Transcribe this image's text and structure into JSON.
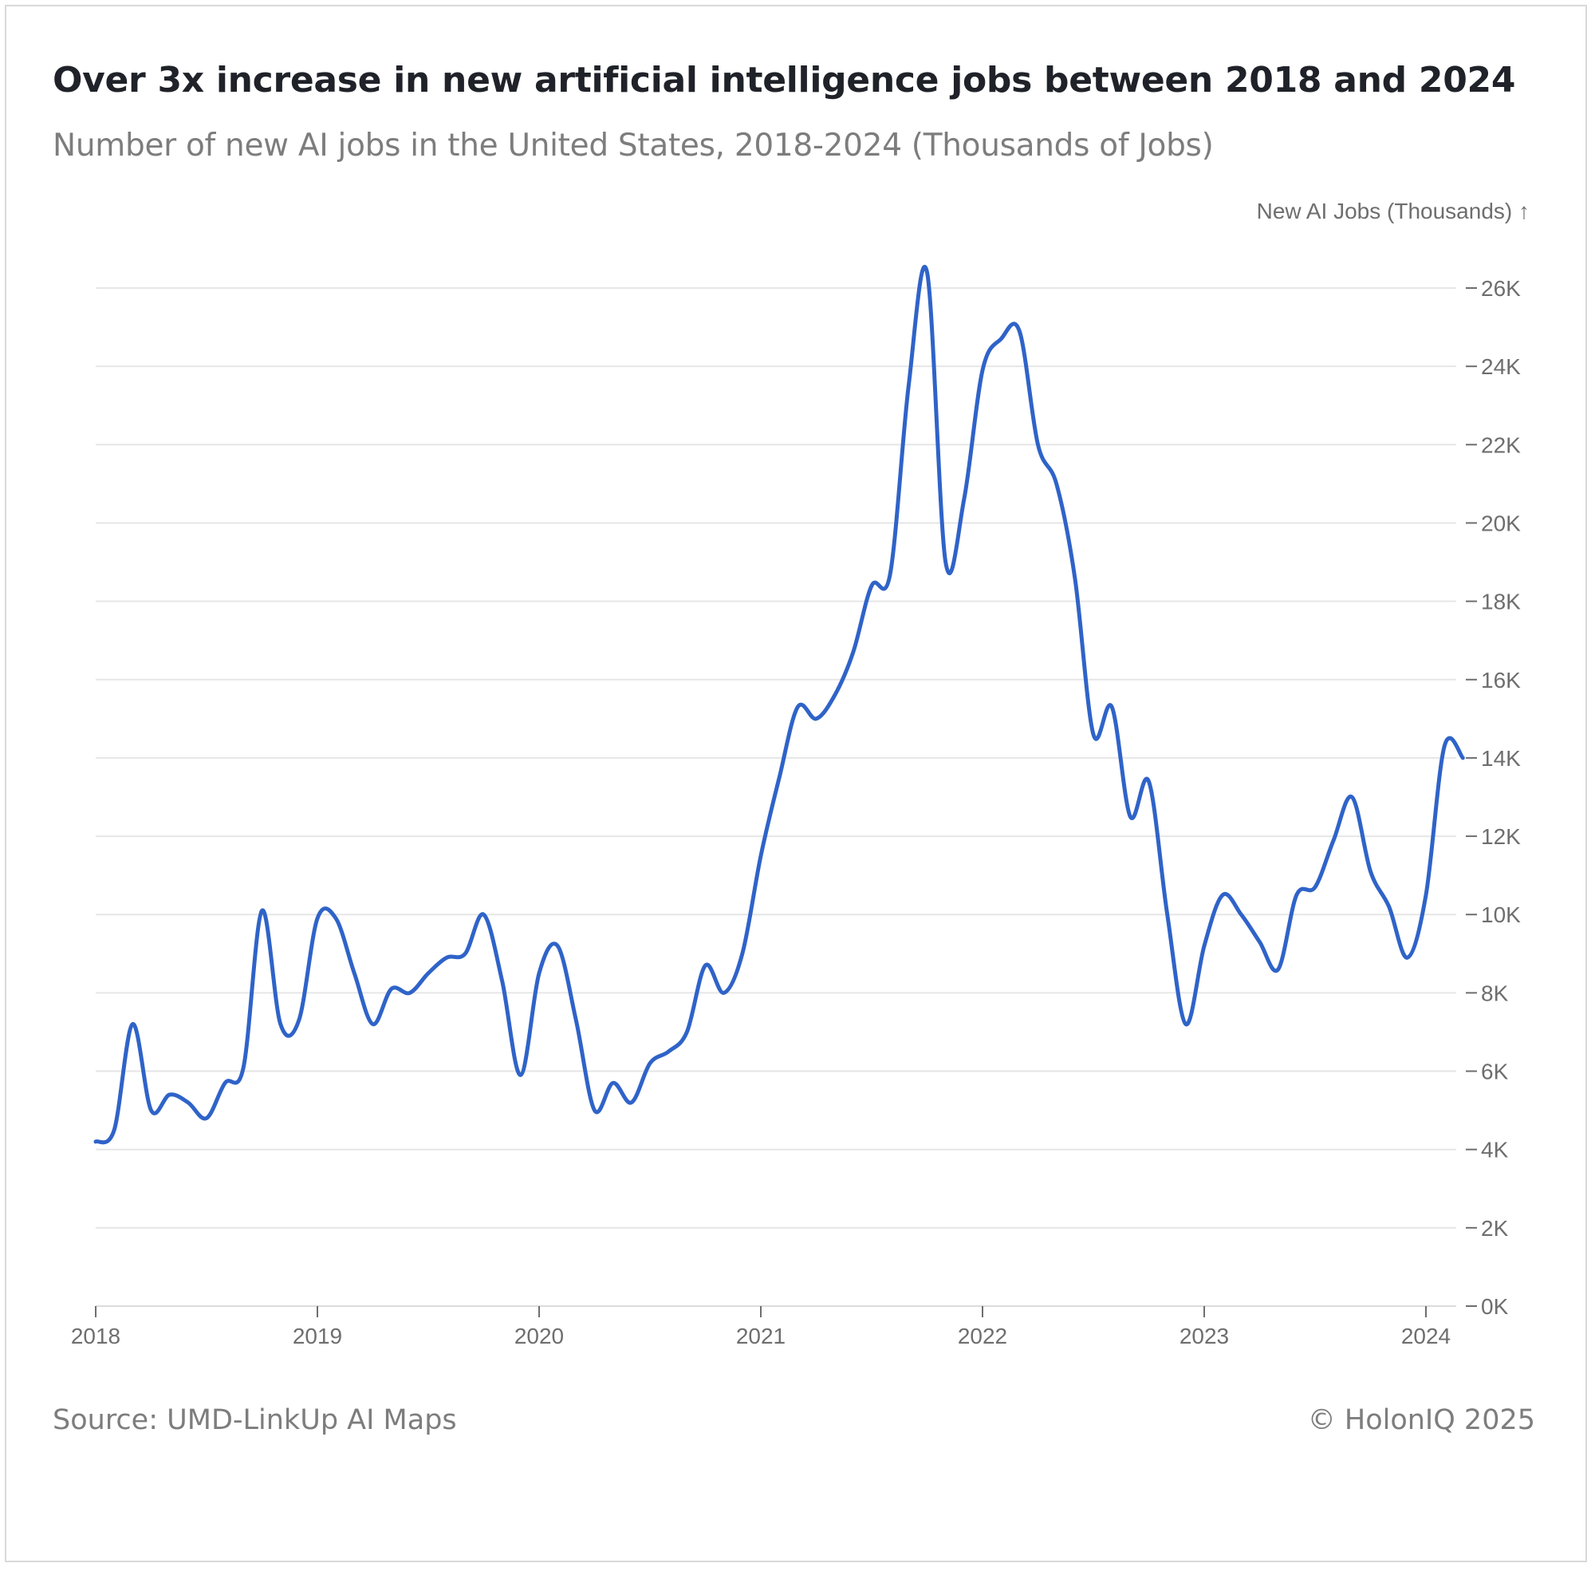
{
  "header": {
    "title": "Over 3x increase in new artificial intelligence jobs between 2018 and 2024",
    "subtitle": "Number of new AI jobs in the United States, 2018-2024 (Thousands of Jobs)"
  },
  "footer": {
    "source": "Source: UMD-LinkUp AI Maps",
    "copyright": "© HolonIQ 2025"
  },
  "colors": {
    "line": "#2f63c8",
    "grid": "#e6e6e6",
    "axis_text": "#6e6e6e",
    "title": "#1f2228"
  },
  "chart_data": {
    "type": "line",
    "ylabel": "New AI Jobs (Thousands) ↑",
    "ylim": [
      0,
      26000
    ],
    "y_ticks": [
      {
        "value": 0,
        "label": "0K"
      },
      {
        "value": 2000,
        "label": "2K"
      },
      {
        "value": 4000,
        "label": "4K"
      },
      {
        "value": 6000,
        "label": "6K"
      },
      {
        "value": 8000,
        "label": "8K"
      },
      {
        "value": 10000,
        "label": "10K"
      },
      {
        "value": 12000,
        "label": "12K"
      },
      {
        "value": 14000,
        "label": "14K"
      },
      {
        "value": 16000,
        "label": "16K"
      },
      {
        "value": 18000,
        "label": "18K"
      },
      {
        "value": 20000,
        "label": "20K"
      },
      {
        "value": 22000,
        "label": "22K"
      },
      {
        "value": 24000,
        "label": "24K"
      },
      {
        "value": 26000,
        "label": "26K"
      }
    ],
    "xlim": [
      "2018-01",
      "2024-03"
    ],
    "x_ticks": [
      "2018",
      "2019",
      "2020",
      "2021",
      "2022",
      "2023",
      "2024"
    ],
    "grid": true,
    "y_axis_position": "right",
    "series": [
      {
        "x": [
          "2018-01",
          "2018-02",
          "2018-03",
          "2018-04",
          "2018-05",
          "2018-06",
          "2018-07",
          "2018-08",
          "2018-09",
          "2018-10",
          "2018-11",
          "2018-12",
          "2019-01",
          "2019-02",
          "2019-03",
          "2019-04",
          "2019-05",
          "2019-06",
          "2019-07",
          "2019-08",
          "2019-09",
          "2019-10",
          "2019-11",
          "2019-12",
          "2020-01",
          "2020-02",
          "2020-03",
          "2020-04",
          "2020-05",
          "2020-06",
          "2020-07",
          "2020-08",
          "2020-09",
          "2020-10",
          "2020-11",
          "2020-12",
          "2021-01",
          "2021-02",
          "2021-03",
          "2021-04",
          "2021-05",
          "2021-06",
          "2021-07",
          "2021-08",
          "2021-09",
          "2021-10",
          "2021-11",
          "2021-12",
          "2022-01",
          "2022-02",
          "2022-03",
          "2022-04",
          "2022-05",
          "2022-06",
          "2022-07",
          "2022-08",
          "2022-09",
          "2022-10",
          "2022-11",
          "2022-12",
          "2023-01",
          "2023-02",
          "2023-03",
          "2023-04",
          "2023-05",
          "2023-06",
          "2023-07",
          "2023-08",
          "2023-09",
          "2023-10",
          "2023-11",
          "2023-12",
          "2024-01",
          "2024-02",
          "2024-03"
        ],
        "values": [
          4200,
          4500,
          7200,
          5000,
          5400,
          5200,
          4800,
          5700,
          6100,
          10100,
          7200,
          7300,
          9900,
          9900,
          8500,
          7200,
          8100,
          8000,
          8500,
          8900,
          9000,
          10000,
          8300,
          5900,
          8500,
          9200,
          7300,
          5000,
          5700,
          5200,
          6200,
          6500,
          7000,
          8700,
          8000,
          9000,
          11500,
          13500,
          15300,
          15000,
          15600,
          16700,
          18400,
          18700,
          23500,
          26400,
          19000,
          20600,
          23900,
          24700,
          24900,
          22000,
          21000,
          18600,
          14600,
          15300,
          12500,
          13400,
          10000,
          7200,
          9200,
          10500,
          10000,
          9300,
          8600,
          10500,
          10700,
          11900,
          13000,
          11100,
          10200,
          8900,
          10500,
          14300,
          14000
        ]
      }
    ]
  }
}
